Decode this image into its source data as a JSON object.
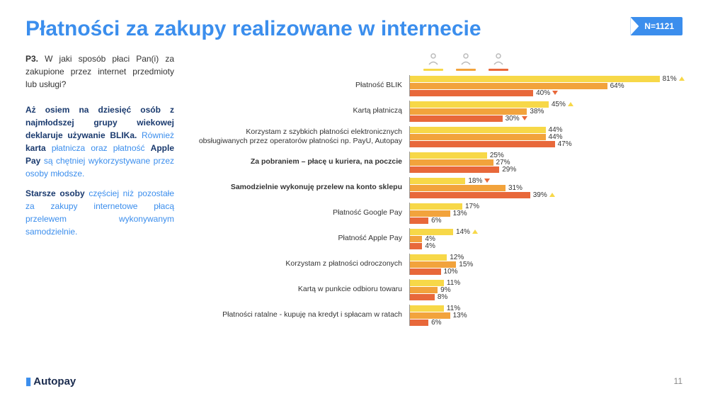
{
  "title": "Płatności za zakupy realizowane w internecie",
  "n_badge": "N=1121",
  "question_code": "P3.",
  "question_text": " W jaki sposób płaci Pan(i) za zakupione przez internet przedmioty lub usługi?",
  "insight_p1_a": "Aż osiem na dziesięć osób z najmłodszej grupy wiekowej deklaruje używanie BLIKa.",
  "insight_p1_b": " Również ",
  "insight_p1_c": "karta",
  "insight_p1_d": " płatnicza oraz płatność ",
  "insight_p1_e": "Apple Pay",
  "insight_p1_f": " są chętniej wykorzystywane przez osoby młodsze.",
  "insight_p2_a": "Starsze osoby",
  "insight_p2_b": " częściej niż pozostałe za zakupy internetowe płacą przelewem wykonywanym samodzielnie.",
  "legend": {
    "colors": [
      "#f7d848",
      "#f2a33c",
      "#e8683a"
    ]
  },
  "chart": {
    "max_value": 85,
    "bar_colors": [
      "#f7d848",
      "#f2a33c",
      "#e8683a"
    ],
    "up_color": "#f7d848",
    "down_color": "#e8683a",
    "rows": [
      {
        "label": "Płatność BLIK",
        "values": [
          81,
          64,
          40
        ],
        "marks": [
          "up",
          "",
          "down"
        ]
      },
      {
        "label": "Kartą płatniczą",
        "values": [
          45,
          38,
          30
        ],
        "marks": [
          "up",
          "",
          "down"
        ]
      },
      {
        "label": "Korzystam z szybkich płatności elektronicznych obsługiwanych przez operatorów płatności np. PayU, Autopay",
        "values": [
          44,
          44,
          47
        ],
        "marks": [
          "",
          "",
          ""
        ]
      },
      {
        "label": "Za pobraniem – płacę u kuriera, na poczcie",
        "bold": true,
        "values": [
          25,
          27,
          29
        ],
        "marks": [
          "",
          "",
          ""
        ]
      },
      {
        "label": "Samodzielnie wykonuję przelew na konto sklepu",
        "bold": true,
        "values": [
          18,
          31,
          39
        ],
        "marks": [
          "down",
          "",
          "up"
        ]
      },
      {
        "label": "Płatność Google Pay",
        "values": [
          17,
          13,
          6
        ],
        "marks": [
          "",
          "",
          ""
        ]
      },
      {
        "label": "Płatność Apple Pay",
        "values": [
          14,
          4,
          4
        ],
        "marks": [
          "up",
          "",
          ""
        ]
      },
      {
        "label": "Korzystam z płatności odroczonych",
        "values": [
          12,
          15,
          10
        ],
        "marks": [
          "",
          "",
          ""
        ]
      },
      {
        "label": "Kartą w punkcie odbioru towaru",
        "values": [
          11,
          9,
          8
        ],
        "marks": [
          "",
          "",
          ""
        ]
      },
      {
        "label": "Płatności ratalne - kupuję na kredyt i spłacam w ratach",
        "values": [
          11,
          13,
          6
        ],
        "marks": [
          "",
          "",
          ""
        ]
      }
    ]
  },
  "logo_text": "Autopay",
  "page_number": "11"
}
